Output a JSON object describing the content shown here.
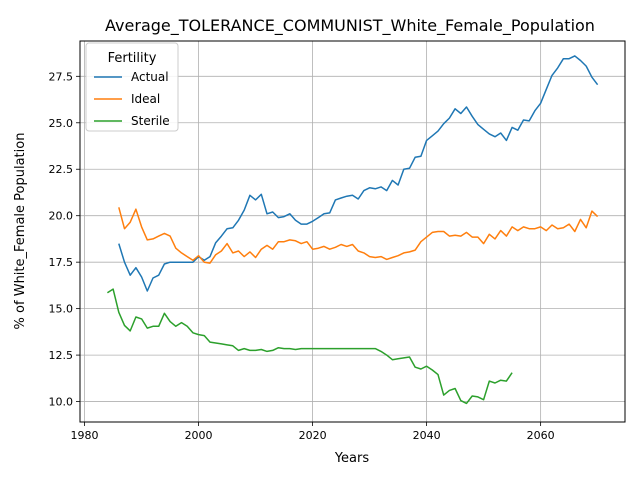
{
  "chart_data": {
    "type": "line",
    "title": "Average_TOLERANCE_COMMUNIST_White_Female_Population",
    "xlabel": "Years",
    "ylabel": "% of White_Female Population",
    "xlim": [
      1979.2,
      2074.8
    ],
    "ylim": [
      8.9,
      29.4
    ],
    "xticks": [
      1980,
      2000,
      2020,
      2040,
      2060
    ],
    "yticks": [
      10.0,
      12.5,
      15.0,
      17.5,
      20.0,
      22.5,
      25.0,
      27.5
    ],
    "xtick_labels": [
      "1980",
      "2000",
      "2020",
      "2040",
      "2060"
    ],
    "ytick_labels": [
      "10.0",
      "12.5",
      "15.0",
      "17.5",
      "20.0",
      "22.5",
      "25.0",
      "27.5"
    ],
    "grid": true,
    "legend": {
      "title": "Fertility",
      "position": "top-left"
    },
    "series": [
      {
        "name": "Actual",
        "color": "#1f77b4",
        "x": [
          1986,
          1987,
          1988,
          1989,
          1990,
          1991,
          1992,
          1993,
          1994,
          1995,
          1996,
          1997,
          1998,
          1999,
          2000,
          2001,
          2002,
          2003,
          2004,
          2005,
          2006,
          2007,
          2008,
          2009,
          2010,
          2011,
          2012,
          2013,
          2014,
          2015,
          2016,
          2017,
          2018,
          2019,
          2020,
          2021,
          2022,
          2023,
          2024,
          2025,
          2026,
          2027,
          2028,
          2029,
          2030,
          2031,
          2032,
          2033,
          2034,
          2035,
          2036,
          2037,
          2038,
          2039,
          2040,
          2041,
          2042,
          2043,
          2044,
          2045,
          2046,
          2047,
          2048,
          2049,
          2050,
          2051,
          2052,
          2053,
          2054,
          2055,
          2056,
          2057,
          2058,
          2059,
          2060,
          2061,
          2062,
          2063,
          2064,
          2065,
          2066,
          2067,
          2068,
          2069,
          2070
        ],
        "y": [
          18.5,
          17.5,
          16.8,
          17.2,
          16.7,
          15.95,
          16.65,
          16.8,
          17.4,
          17.5,
          17.5,
          17.5,
          17.5,
          17.5,
          17.8,
          17.6,
          17.8,
          18.55,
          18.9,
          19.3,
          19.35,
          19.75,
          20.3,
          21.1,
          20.85,
          21.15,
          20.1,
          20.2,
          19.9,
          19.95,
          20.1,
          19.75,
          19.55,
          19.55,
          19.7,
          19.9,
          20.1,
          20.15,
          20.85,
          20.95,
          21.05,
          21.1,
          20.9,
          21.35,
          21.5,
          21.45,
          21.55,
          21.35,
          21.9,
          21.65,
          22.5,
          22.55,
          23.15,
          23.2,
          24.05,
          24.3,
          24.55,
          24.95,
          25.25,
          25.75,
          25.5,
          25.85,
          25.35,
          24.9,
          24.65,
          24.4,
          24.25,
          24.45,
          24.05,
          24.75,
          24.6,
          25.15,
          25.1,
          25.65,
          26.05,
          26.8,
          27.55,
          27.95,
          28.45,
          28.45,
          28.6,
          28.35,
          28.05,
          27.45,
          27.05
        ]
      },
      {
        "name": "Ideal",
        "color": "#ff7f0e",
        "x": [
          1986,
          1987,
          1988,
          1989,
          1990,
          1991,
          1992,
          1993,
          1994,
          1995,
          1996,
          1997,
          1998,
          1999,
          2000,
          2001,
          2002,
          2003,
          2004,
          2005,
          2006,
          2007,
          2008,
          2009,
          2010,
          2011,
          2012,
          2013,
          2014,
          2015,
          2016,
          2017,
          2018,
          2019,
          2020,
          2021,
          2022,
          2023,
          2024,
          2025,
          2026,
          2027,
          2028,
          2029,
          2030,
          2031,
          2032,
          2033,
          2034,
          2035,
          2036,
          2037,
          2038,
          2039,
          2040,
          2041,
          2042,
          2043,
          2044,
          2045,
          2046,
          2047,
          2048,
          2049,
          2050,
          2051,
          2052,
          2053,
          2054,
          2055,
          2056,
          2057,
          2058,
          2059,
          2060,
          2061,
          2062,
          2063,
          2064,
          2065,
          2066,
          2067,
          2068,
          2069,
          2070
        ],
        "y": [
          20.45,
          19.3,
          19.65,
          20.35,
          19.4,
          18.7,
          18.75,
          18.9,
          19.05,
          18.9,
          18.25,
          18.0,
          17.8,
          17.6,
          17.85,
          17.5,
          17.45,
          17.9,
          18.1,
          18.5,
          18.0,
          18.1,
          17.8,
          18.05,
          17.75,
          18.2,
          18.4,
          18.2,
          18.6,
          18.6,
          18.7,
          18.65,
          18.5,
          18.6,
          18.2,
          18.25,
          18.35,
          18.2,
          18.3,
          18.45,
          18.35,
          18.45,
          18.1,
          18.0,
          17.8,
          17.75,
          17.8,
          17.65,
          17.75,
          17.85,
          18.0,
          18.05,
          18.15,
          18.6,
          18.85,
          19.1,
          19.15,
          19.15,
          18.9,
          18.95,
          18.9,
          19.1,
          18.85,
          18.85,
          18.5,
          19.0,
          18.75,
          19.2,
          18.9,
          19.4,
          19.2,
          19.4,
          19.3,
          19.3,
          19.4,
          19.2,
          19.5,
          19.3,
          19.35,
          19.55,
          19.15,
          19.8,
          19.35,
          20.25,
          19.95
        ]
      },
      {
        "name": "Sterile",
        "color": "#2ca02c",
        "x": [
          1984,
          1985,
          1986,
          1987,
          1988,
          1989,
          1990,
          1991,
          1992,
          1993,
          1994,
          1995,
          1996,
          1997,
          1998,
          1999,
          2000,
          2001,
          2002,
          2003,
          2004,
          2005,
          2006,
          2007,
          2008,
          2009,
          2010,
          2011,
          2012,
          2013,
          2014,
          2015,
          2016,
          2017,
          2018,
          2019,
          2020,
          2021,
          2022,
          2023,
          2024,
          2025,
          2026,
          2027,
          2028,
          2029,
          2030,
          2031,
          2032,
          2033,
          2034,
          2035,
          2036,
          2037,
          2038,
          2039,
          2040,
          2041,
          2042,
          2043,
          2044,
          2045,
          2046,
          2047,
          2048,
          2049,
          2050,
          2051,
          2052,
          2053,
          2054,
          2055
        ],
        "y": [
          15.85,
          16.05,
          14.8,
          14.1,
          13.8,
          14.55,
          14.45,
          13.95,
          14.05,
          14.05,
          14.75,
          14.3,
          14.05,
          14.25,
          14.05,
          13.7,
          13.6,
          13.55,
          13.2,
          13.15,
          13.1,
          13.05,
          13.0,
          12.75,
          12.85,
          12.75,
          12.75,
          12.8,
          12.7,
          12.75,
          12.9,
          12.85,
          12.85,
          12.8,
          12.85,
          12.85,
          12.85,
          12.85,
          12.85,
          12.85,
          12.85,
          12.85,
          12.85,
          12.85,
          12.85,
          12.85,
          12.85,
          12.85,
          12.7,
          12.5,
          12.25,
          12.3,
          12.35,
          12.4,
          11.85,
          11.75,
          11.9,
          11.7,
          11.45,
          10.35,
          10.6,
          10.7,
          10.05,
          9.9,
          10.3,
          10.25,
          10.1,
          11.1,
          11.0,
          11.15,
          11.1,
          11.55
        ]
      }
    ]
  }
}
